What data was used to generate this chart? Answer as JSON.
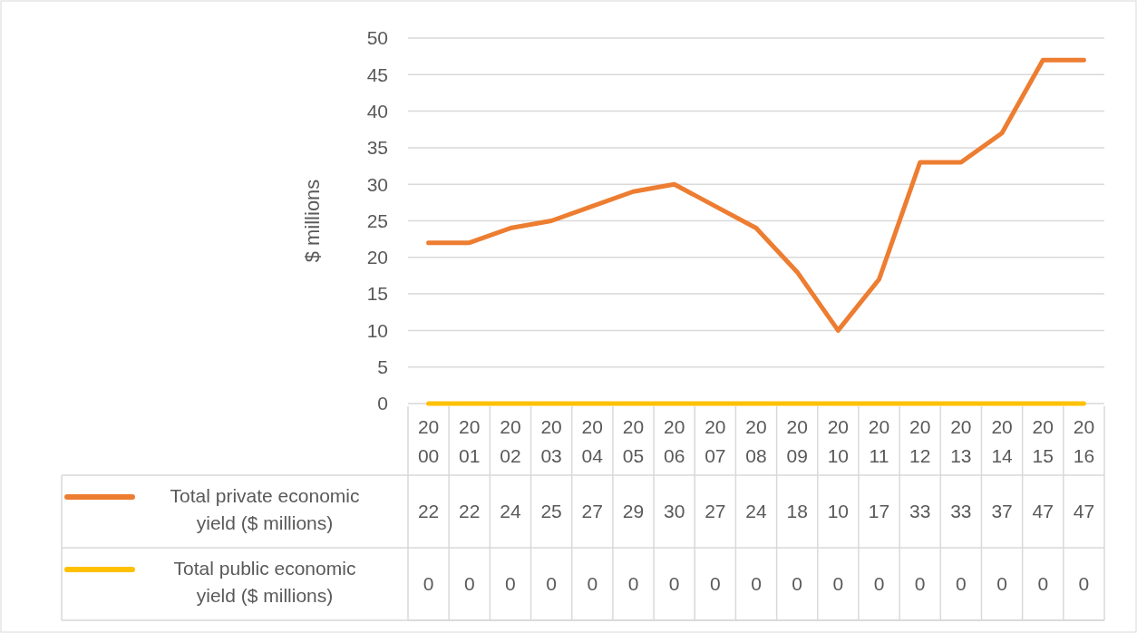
{
  "chart_data": {
    "type": "line",
    "ylabel": "$ millions",
    "categories": [
      "2000",
      "2001",
      "2002",
      "2003",
      "2004",
      "2005",
      "2006",
      "2007",
      "2008",
      "2009",
      "2010",
      "2011",
      "2012",
      "2013",
      "2014",
      "2015",
      "2016"
    ],
    "series": [
      {
        "name": "Total private economic yield ($ millions)",
        "color": "#ed7d31",
        "values": [
          22,
          22,
          24,
          25,
          27,
          29,
          30,
          27,
          24,
          18,
          10,
          17,
          33,
          33,
          37,
          47,
          47
        ]
      },
      {
        "name": "Total public economic yield ($ millions)",
        "color": "#ffc000",
        "values": [
          0,
          0,
          0,
          0,
          0,
          0,
          0,
          0,
          0,
          0,
          0,
          0,
          0,
          0,
          0,
          0,
          0
        ]
      }
    ],
    "ylim": [
      0,
      50
    ],
    "yticks": [
      0,
      5,
      10,
      15,
      20,
      25,
      30,
      35,
      40,
      45,
      50
    ],
    "grid": "y",
    "legend": "bottom",
    "data_labels": true,
    "marker": "none",
    "line_style": "solid"
  }
}
